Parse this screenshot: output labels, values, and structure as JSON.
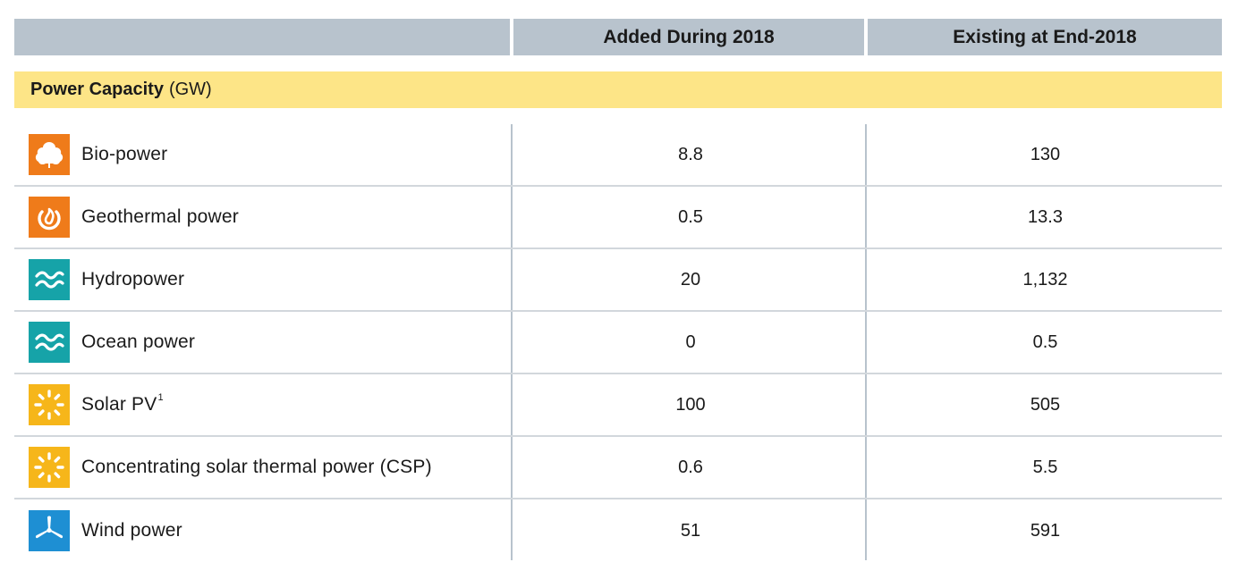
{
  "header": {
    "col_added": "Added During 2018",
    "col_existing": "Existing at End-2018"
  },
  "section": {
    "title": "Power Capacity",
    "unit": "(GW)"
  },
  "colors": {
    "header_bg": "#b8c3cd",
    "section_bg": "#fde587",
    "orange": "#ef7b1a",
    "teal": "#16a3a8",
    "yellow": "#f6b61a",
    "blue": "#1e8fd3"
  },
  "rows": [
    {
      "icon": "leaf-icon",
      "name": "Bio-power",
      "note": "",
      "added": "8.8",
      "existing": "130"
    },
    {
      "icon": "geothermal-icon",
      "name": "Geothermal power",
      "note": "",
      "added": "0.5",
      "existing": "13.3"
    },
    {
      "icon": "waves-icon",
      "name": "Hydropower",
      "note": "",
      "added": "20",
      "existing": "1,132"
    },
    {
      "icon": "waves-icon",
      "name": "Ocean power",
      "note": "",
      "added": "0",
      "existing": "0.5"
    },
    {
      "icon": "sun-icon",
      "name": "Solar PV",
      "note": "1",
      "added": "100",
      "existing": "505"
    },
    {
      "icon": "sun-icon",
      "name": "Concentrating solar thermal power (CSP)",
      "note": "",
      "added": "0.6",
      "existing": "5.5"
    },
    {
      "icon": "wind-turbine-icon",
      "name": "Wind power",
      "note": "",
      "added": "51",
      "existing": "591"
    }
  ]
}
